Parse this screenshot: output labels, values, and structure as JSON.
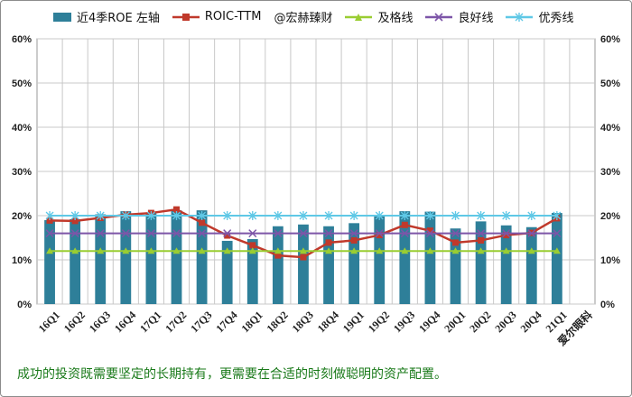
{
  "chart_data": {
    "type": "bar",
    "categories": [
      "16Q1",
      "16Q2",
      "16Q3",
      "16Q4",
      "17Q1",
      "17Q2",
      "17Q3",
      "17Q4",
      "18Q1",
      "18Q2",
      "18Q3",
      "18Q4",
      "19Q1",
      "19Q2",
      "19Q3",
      "19Q4",
      "20Q1",
      "20Q2",
      "20Q3",
      "20Q4",
      "21Q1"
    ],
    "extra_category_label": "爱尔眼科",
    "series": [
      {
        "name": "近4季ROE 左轴",
        "type": "bar",
        "color": "#2e7f99",
        "values": [
          19.0,
          19.2,
          20.3,
          21.0,
          20.5,
          21.2,
          21.2,
          14.3,
          14.7,
          17.6,
          18.0,
          17.6,
          18.3,
          20.0,
          21.0,
          20.9,
          17.1,
          18.7,
          17.8,
          17.4,
          20.6
        ]
      },
      {
        "name": "ROIC-TTM",
        "type": "line",
        "marker": "square",
        "color": "#c0392b",
        "values": [
          18.9,
          18.8,
          19.5,
          20.2,
          20.6,
          21.4,
          18.4,
          15.5,
          13.3,
          11.0,
          10.6,
          13.9,
          14.4,
          15.6,
          17.9,
          16.6,
          13.9,
          14.4,
          15.6,
          16.1,
          19.4
        ]
      },
      {
        "name": "及格线",
        "type": "line",
        "marker": "triangle",
        "color": "#9acd32",
        "values": [
          12,
          12,
          12,
          12,
          12,
          12,
          12,
          12,
          12,
          12,
          12,
          12,
          12,
          12,
          12,
          12,
          12,
          12,
          12,
          12,
          12
        ]
      },
      {
        "name": "良好线",
        "type": "line",
        "marker": "x",
        "color": "#7d55a8",
        "values": [
          16,
          16,
          16,
          16,
          16,
          16,
          16,
          16,
          16,
          16,
          16,
          16,
          16,
          16,
          16,
          16,
          16,
          16,
          16,
          16,
          16
        ]
      },
      {
        "name": "优秀线",
        "type": "line",
        "marker": "asterisk",
        "color": "#5fc8e6",
        "values": [
          20,
          20,
          20,
          20,
          20,
          20,
          20,
          20,
          20,
          20,
          20,
          20,
          20,
          20,
          20,
          20,
          20,
          20,
          20,
          20,
          20
        ]
      }
    ],
    "ylim": [
      0,
      60
    ],
    "yticks": [
      "0%",
      "10%",
      "20%",
      "30%",
      "40%",
      "50%",
      "60%"
    ],
    "y2ticks": [
      "0%",
      "10%",
      "20%",
      "30%",
      "40%",
      "50%",
      "60%"
    ],
    "grid": true,
    "legend_position": "top"
  },
  "legend": {
    "roe": "近4季ROE 左轴",
    "roic": "ROIC-TTM",
    "credit": "@宏赫臻财",
    "pass": "及格线",
    "good": "良好线",
    "excellent": "优秀线"
  },
  "caption": "成功的投资既需要坚定的长期持有，更需要在合适的时刻做聪明的资产配置。",
  "colors": {
    "bar": "#2e7f99",
    "roic": "#c0392b",
    "pass": "#9acd32",
    "good": "#7d55a8",
    "excellent": "#5fc8e6",
    "caption": "#1a7a1a"
  }
}
